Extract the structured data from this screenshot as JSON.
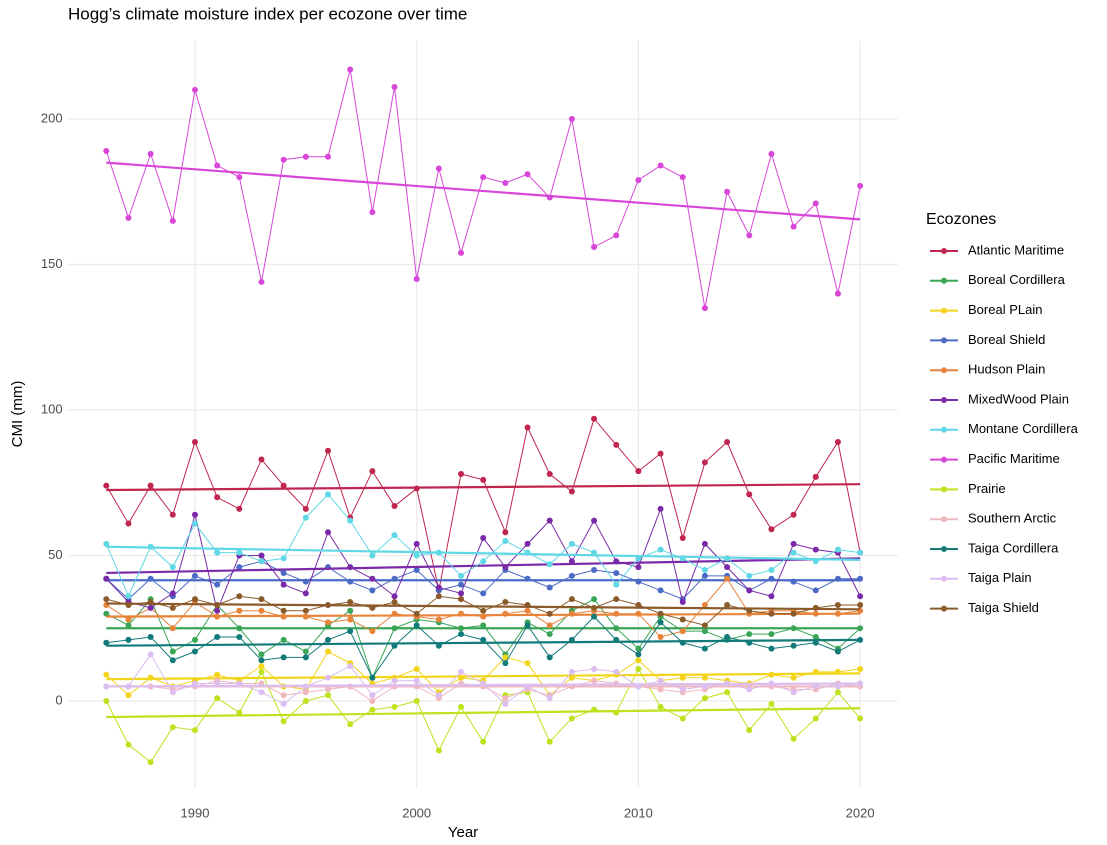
{
  "chart_data": {
    "type": "line",
    "title": "Hogg’s climate moisture index per ecozone over time",
    "x_label": "Year",
    "y_label": "CMI (mm)",
    "legend_title": "Ecozones",
    "x": [
      1986,
      1987,
      1988,
      1989,
      1990,
      1991,
      1992,
      1993,
      1994,
      1995,
      1996,
      1997,
      1998,
      1999,
      2000,
      2001,
      2002,
      2003,
      2004,
      2005,
      2006,
      2007,
      2008,
      2009,
      2010,
      2011,
      2012,
      2013,
      2014,
      2015,
      2016,
      2017,
      2018,
      2019,
      2020
    ],
    "xlim": [
      1984.3,
      2021.7
    ],
    "xticks": [
      1990,
      2000,
      2010,
      2020
    ],
    "ylim": [
      -30,
      227
    ],
    "yticks": [
      0,
      50,
      100,
      150,
      200
    ],
    "grid": true,
    "legend": "right",
    "series": [
      {
        "name": "Atlantic Maritime",
        "color": "#c0254f",
        "trend": [
          72.5,
          74.5
        ],
        "values": [
          74,
          61,
          74,
          64,
          89,
          70,
          66,
          83,
          74,
          66,
          86,
          63,
          79,
          67,
          73,
          38,
          78,
          76,
          58,
          94,
          78,
          72,
          97,
          88,
          79,
          85,
          56,
          82,
          89,
          71,
          59,
          64,
          77,
          89,
          51
        ]
      },
      {
        "name": "Boreal Cordillera",
        "color": "#3aa655",
        "trend": [
          25,
          25
        ],
        "values": [
          30,
          26,
          35,
          17,
          21,
          33,
          25,
          16,
          21,
          17,
          26,
          31,
          8,
          25,
          28,
          27,
          25,
          26,
          16,
          27,
          23,
          31,
          35,
          25,
          18,
          29,
          24,
          24,
          21,
          23,
          23,
          25,
          22,
          18,
          25
        ]
      },
      {
        "name": "Boreal PLain",
        "color": "#f2d51b",
        "trend": [
          7.5,
          9.5
        ],
        "values": [
          9,
          2,
          8,
          5,
          7,
          9,
          7,
          12,
          5,
          4,
          17,
          13,
          6,
          8,
          11,
          3,
          8,
          7,
          15,
          13,
          2,
          8,
          7,
          9,
          14,
          7,
          8,
          8,
          7,
          6,
          9,
          8,
          10,
          10,
          11
        ]
      },
      {
        "name": "Boreal Shield",
        "color": "#4a6ac6",
        "trend": [
          41.5,
          41.5
        ],
        "values": [
          42,
          35,
          42,
          36,
          43,
          40,
          46,
          48,
          44,
          41,
          46,
          41,
          38,
          42,
          45,
          38,
          40,
          37,
          45,
          42,
          39,
          43,
          45,
          44,
          41,
          38,
          35,
          43,
          43,
          38,
          42,
          41,
          38,
          42,
          42
        ]
      },
      {
        "name": "Hudson Plain",
        "color": "#e8833a",
        "trend": [
          29,
          30
        ],
        "values": [
          33,
          28,
          32,
          25,
          34,
          29,
          31,
          31,
          29,
          29,
          27,
          28,
          24,
          30,
          29,
          28,
          30,
          29,
          30,
          31,
          26,
          30,
          31,
          30,
          30,
          22,
          24,
          33,
          42,
          30,
          31,
          31,
          30,
          30,
          31
        ]
      },
      {
        "name": "MixedWood Plain",
        "color": "#7a2aa8",
        "trend": [
          44,
          49
        ],
        "values": [
          42,
          34,
          32,
          37,
          64,
          31,
          50,
          50,
          40,
          37,
          58,
          46,
          42,
          36,
          54,
          39,
          37,
          56,
          46,
          54,
          62,
          48,
          62,
          48,
          46,
          66,
          34,
          54,
          46,
          38,
          36,
          54,
          52,
          51,
          36
        ]
      },
      {
        "name": "Montane Cordillera",
        "color": "#5fd8e6",
        "trend": [
          53,
          48.5
        ],
        "values": [
          54,
          36,
          53,
          46,
          61,
          51,
          51,
          48,
          49,
          63,
          71,
          62,
          50,
          57,
          50,
          51,
          43,
          48,
          55,
          51,
          47,
          54,
          51,
          40,
          49,
          52,
          49,
          45,
          49,
          43,
          45,
          51,
          48,
          52,
          51
        ]
      },
      {
        "name": "Pacific Maritime",
        "color": "#d846d8",
        "trend": [
          185,
          165.5
        ],
        "values": [
          189,
          166,
          188,
          165,
          210,
          184,
          180,
          144,
          186,
          187,
          187,
          217,
          168,
          211,
          145,
          183,
          154,
          180,
          178,
          181,
          173,
          200,
          156,
          160,
          179,
          184,
          180,
          135,
          175,
          160,
          188,
          163,
          171,
          140,
          177
        ]
      },
      {
        "name": "Prairie",
        "color": "#bde21e",
        "trend": [
          -5.5,
          -2.5
        ],
        "values": [
          0,
          -15,
          -21,
          -9,
          -10,
          1,
          -4,
          10,
          -7,
          0,
          2,
          -8,
          -3,
          -2,
          0,
          -17,
          -2,
          -14,
          2,
          3,
          -14,
          -6,
          -3,
          -4,
          11,
          -2,
          -6,
          1,
          3,
          -10,
          -1,
          -13,
          -6,
          3,
          -6
        ]
      },
      {
        "name": "Southern Arctic",
        "color": "#f0b8c0",
        "trend": [
          5,
          5
        ],
        "values": [
          5,
          5,
          5,
          4,
          5,
          7,
          6,
          6,
          2,
          3,
          4,
          5,
          0,
          5,
          5,
          1,
          6,
          5,
          1,
          4,
          2,
          5,
          7,
          6,
          5,
          4,
          3,
          4,
          6,
          5,
          5,
          4,
          4,
          6,
          5
        ]
      },
      {
        "name": "Taiga Cordillera",
        "color": "#137a7a",
        "trend": [
          19,
          21
        ],
        "values": [
          20,
          21,
          22,
          14,
          17,
          22,
          22,
          14,
          15,
          15,
          21,
          24,
          8,
          19,
          26,
          19,
          23,
          21,
          13,
          26,
          15,
          21,
          29,
          21,
          16,
          27,
          20,
          18,
          22,
          20,
          18,
          19,
          20,
          17,
          21
        ]
      },
      {
        "name": "Taiga Plain",
        "color": "#dcbdf0",
        "trend": [
          5,
          6
        ],
        "values": [
          5,
          5,
          16,
          3,
          6,
          6,
          6,
          3,
          -1,
          5,
          8,
          12,
          2,
          7,
          7,
          2,
          10,
          6,
          -1,
          5,
          1,
          10,
          11,
          10,
          5,
          7,
          4,
          5,
          6,
          4,
          6,
          3,
          5,
          5,
          6
        ]
      },
      {
        "name": "Taiga Shield",
        "color": "#8a5a2a",
        "trend": [
          33.5,
          31.5
        ],
        "values": [
          35,
          33,
          34,
          32,
          35,
          33,
          36,
          35,
          31,
          31,
          33,
          34,
          32,
          34,
          30,
          36,
          35,
          31,
          34,
          33,
          30,
          35,
          32,
          35,
          33,
          30,
          28,
          26,
          33,
          31,
          30,
          30,
          32,
          33,
          33
        ]
      }
    ]
  }
}
